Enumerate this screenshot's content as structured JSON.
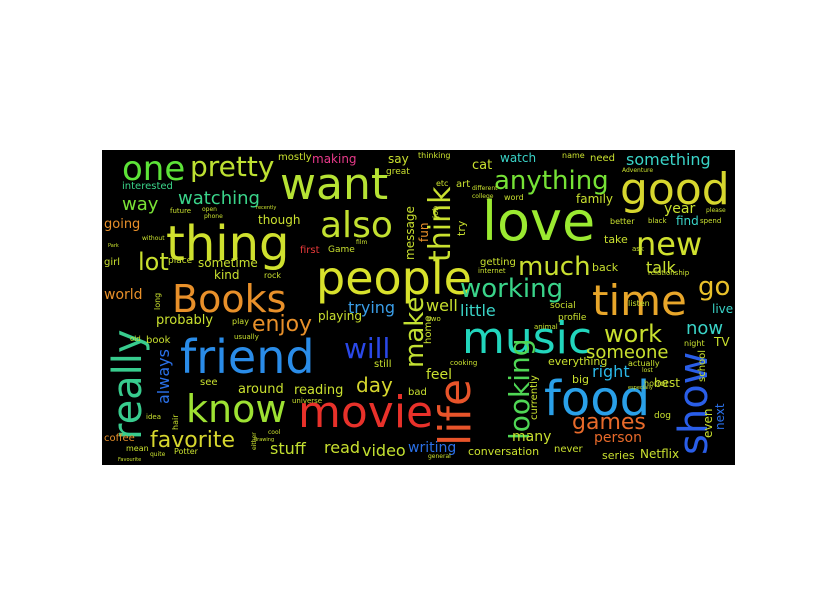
{
  "words": [
    {
      "text": "people",
      "color": "#d8e12c"
    },
    {
      "text": "love",
      "color": "#9bea31"
    },
    {
      "text": "movie",
      "color": "#e8312a"
    },
    {
      "text": "friend",
      "color": "#2a8ce8"
    },
    {
      "text": "music",
      "color": "#22d6bd"
    },
    {
      "text": "thing",
      "color": "#cfe02e"
    },
    {
      "text": "food",
      "color": "#2aa0e8"
    },
    {
      "text": "life",
      "color": "#e8542a"
    },
    {
      "text": "good",
      "color": "#d6d62e"
    },
    {
      "text": "want",
      "color": "#b6e234"
    },
    {
      "text": "Books",
      "color": "#e8902a"
    },
    {
      "text": "know",
      "color": "#9ee233"
    },
    {
      "text": "really",
      "color": "#38cc8e"
    },
    {
      "text": "also",
      "color": "#c2e030"
    },
    {
      "text": "one",
      "color": "#5de338"
    },
    {
      "text": "time",
      "color": "#e8a62a"
    },
    {
      "text": "show",
      "color": "#2a5ee8"
    },
    {
      "text": "new",
      "color": "#cfe02e"
    },
    {
      "text": "pretty",
      "color": "#bde032"
    },
    {
      "text": "think",
      "color": "#c9e02f"
    },
    {
      "text": "anything",
      "color": "#76e236"
    },
    {
      "text": "make",
      "color": "#c2e032"
    },
    {
      "text": "looking",
      "color": "#4fd655"
    },
    {
      "text": "working",
      "color": "#3ad48a"
    },
    {
      "text": "much",
      "color": "#c9e030"
    },
    {
      "text": "will",
      "color": "#2a48e8"
    },
    {
      "text": "games",
      "color": "#e86a2a"
    },
    {
      "text": "go",
      "color": "#e8c02a"
    },
    {
      "text": "work",
      "color": "#c9e02f"
    },
    {
      "text": "enjoy",
      "color": "#e8902a"
    },
    {
      "text": "favorite",
      "color": "#d6d62e"
    },
    {
      "text": "lot",
      "color": "#c9e02f"
    },
    {
      "text": "someone",
      "color": "#c9e02f"
    },
    {
      "text": "something",
      "color": "#3ad4c8"
    },
    {
      "text": "watching",
      "color": "#3ad48a"
    },
    {
      "text": "way",
      "color": "#7ae236"
    },
    {
      "text": "now",
      "color": "#3ad4c8"
    },
    {
      "text": "always",
      "color": "#2a70e8"
    },
    {
      "text": "day",
      "color": "#d6d62e"
    },
    {
      "text": "stuff",
      "color": "#c2e030"
    },
    {
      "text": "read",
      "color": "#c9e02f"
    },
    {
      "text": "video",
      "color": "#c2e030"
    },
    {
      "text": "trying",
      "color": "#3a9ee8"
    },
    {
      "text": "talk",
      "color": "#c9e02f"
    },
    {
      "text": "right",
      "color": "#2ab8e8"
    },
    {
      "text": "person",
      "color": "#e86a2a"
    },
    {
      "text": "many",
      "color": "#c9e02f"
    },
    {
      "text": "writing",
      "color": "#2a70e8"
    },
    {
      "text": "conversation",
      "color": "#c9e02f"
    },
    {
      "text": "year",
      "color": "#c9e02f"
    },
    {
      "text": "well",
      "color": "#c9e02f"
    },
    {
      "text": "little",
      "color": "#3ad4c8"
    },
    {
      "text": "feel",
      "color": "#c9e02f"
    },
    {
      "text": "probably",
      "color": "#c9e02f"
    },
    {
      "text": "around",
      "color": "#c9e02f"
    },
    {
      "text": "reading",
      "color": "#c9e02f"
    },
    {
      "text": "playing",
      "color": "#c9e02f"
    },
    {
      "text": "world",
      "color": "#e8902a"
    },
    {
      "text": "going",
      "color": "#e8902a"
    },
    {
      "text": "message",
      "color": "#c9e02f"
    },
    {
      "text": "sometime",
      "color": "#c9e02f"
    },
    {
      "text": "kind",
      "color": "#c9e02f"
    },
    {
      "text": "though",
      "color": "#c9e02f"
    },
    {
      "text": "mostly",
      "color": "#c9e02f"
    },
    {
      "text": "making",
      "color": "#e83a8a"
    },
    {
      "text": "say",
      "color": "#c9e02f"
    },
    {
      "text": "cat",
      "color": "#c9e02f"
    },
    {
      "text": "watch",
      "color": "#3ad4c8"
    },
    {
      "text": "need",
      "color": "#c9e02f"
    },
    {
      "text": "family",
      "color": "#c9e02f"
    },
    {
      "text": "find",
      "color": "#3ad4c8"
    },
    {
      "text": "take",
      "color": "#c9e02f"
    },
    {
      "text": "back",
      "color": "#c9e02f"
    },
    {
      "text": "live",
      "color": "#3ad4c8"
    },
    {
      "text": "TV",
      "color": "#c9e02f"
    },
    {
      "text": "school",
      "color": "#c9e02f"
    },
    {
      "text": "next",
      "color": "#2a70e8"
    },
    {
      "text": "even",
      "color": "#c9e02f"
    },
    {
      "text": "best",
      "color": "#c9e02f"
    },
    {
      "text": "Netflix",
      "color": "#c9e02f"
    },
    {
      "text": "series",
      "color": "#c9e02f"
    },
    {
      "text": "never",
      "color": "#c9e02f"
    },
    {
      "text": "big",
      "color": "#c9e02f"
    },
    {
      "text": "everything",
      "color": "#c9e02f"
    },
    {
      "text": "currently",
      "color": "#c9e02f"
    },
    {
      "text": "still",
      "color": "#c9e02f"
    },
    {
      "text": "bad",
      "color": "#c9e02f"
    },
    {
      "text": "home",
      "color": "#c9e02f"
    },
    {
      "text": "fun",
      "color": "#e8902a"
    },
    {
      "text": "try",
      "color": "#c9e02f"
    },
    {
      "text": "getting",
      "color": "#c9e02f"
    },
    {
      "text": "interested",
      "color": "#3ad48a"
    },
    {
      "text": "coffee",
      "color": "#e8902a"
    },
    {
      "text": "girl",
      "color": "#c9e02f"
    },
    {
      "text": "book",
      "color": "#c9e02f"
    },
    {
      "text": "see",
      "color": "#c9e02f"
    },
    {
      "text": "first",
      "color": "#e83a3a"
    },
    {
      "text": "Game",
      "color": "#c9e02f"
    },
    {
      "text": "art",
      "color": "#c9e02f"
    },
    {
      "text": "great",
      "color": "#c9e02f"
    },
    {
      "text": "social",
      "color": "#c9e02f"
    },
    {
      "text": "profile",
      "color": "#c9e02f"
    },
    {
      "text": "dog",
      "color": "#c9e02f"
    },
    {
      "text": "mean",
      "color": "#c9e02f"
    },
    {
      "text": "Potter",
      "color": "#c9e02f"
    },
    {
      "text": "hair",
      "color": "#c9e02f"
    },
    {
      "text": "rock",
      "color": "#c9e02f"
    },
    {
      "text": "place",
      "color": "#c9e02f"
    },
    {
      "text": "word",
      "color": "#c9e02f"
    },
    {
      "text": "better",
      "color": "#c9e02f"
    },
    {
      "text": "listen",
      "color": "#c9e02f"
    },
    {
      "text": "actually",
      "color": "#c9e02f"
    },
    {
      "text": "horror",
      "color": "#c9e02f"
    },
    {
      "text": "night",
      "color": "#c9e02f"
    },
    {
      "text": "name",
      "color": "#c9e02f"
    },
    {
      "text": "thinking",
      "color": "#c9e02f"
    },
    {
      "text": "job",
      "color": "#c9e02f"
    },
    {
      "text": "usually",
      "color": "#c9e02f"
    },
    {
      "text": "play",
      "color": "#c9e02f"
    },
    {
      "text": "old",
      "color": "#c9e02f"
    },
    {
      "text": "long",
      "color": "#c9e02f"
    },
    {
      "text": "idea",
      "color": "#c9e02f"
    },
    {
      "text": "future",
      "color": "#c9e02f"
    },
    {
      "text": "universe",
      "color": "#c9e02f"
    },
    {
      "text": "cooking",
      "color": "#c9e02f"
    },
    {
      "text": "internet",
      "color": "#c9e02f"
    },
    {
      "text": "relationship",
      "color": "#c9e02f"
    },
    {
      "text": "black",
      "color": "#c9e02f"
    },
    {
      "text": "spend",
      "color": "#c9e02f"
    },
    {
      "text": "ask",
      "color": "#c9e02f"
    },
    {
      "text": "two",
      "color": "#c9e02f"
    },
    {
      "text": "animal",
      "color": "#c9e02f"
    },
    {
      "text": "general",
      "color": "#c9e02f"
    },
    {
      "text": "different",
      "color": "#c9e02f"
    },
    {
      "text": "without",
      "color": "#c9e02f"
    },
    {
      "text": "open",
      "color": "#c9e02f"
    },
    {
      "text": "phone",
      "color": "#c9e02f"
    },
    {
      "text": "quite",
      "color": "#c9e02f"
    },
    {
      "text": "Adventure",
      "color": "#c9e02f"
    },
    {
      "text": "Favourite",
      "color": "#c9e02f"
    },
    {
      "text": "either",
      "color": "#c9e02f"
    },
    {
      "text": "film",
      "color": "#c9e02f"
    },
    {
      "text": "cool",
      "color": "#c9e02f"
    },
    {
      "text": "college",
      "color": "#c9e02f"
    },
    {
      "text": "please",
      "color": "#c9e02f"
    },
    {
      "text": "especially",
      "color": "#c9e02f"
    },
    {
      "text": "etc",
      "color": "#c9e02f"
    },
    {
      "text": "lost",
      "color": "#c9e02f"
    },
    {
      "text": "Park",
      "color": "#c9e02f"
    },
    {
      "text": "drawing",
      "color": "#c9e02f"
    },
    {
      "text": "recently",
      "color": "#c9e02f"
    }
  ]
}
